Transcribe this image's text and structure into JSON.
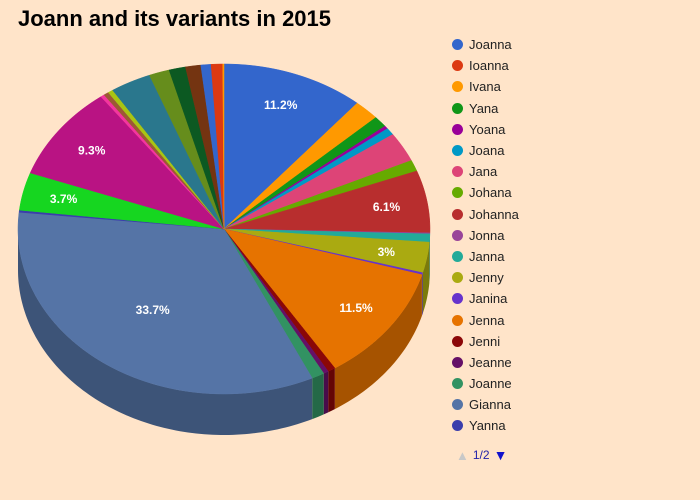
{
  "chart_data": {
    "type": "pie",
    "title": "Joann and its variants in 2015",
    "slices": [
      {
        "name": "Joanna",
        "value": 11.2,
        "color": "#3366cc",
        "label": "11.2%"
      },
      {
        "name": "Ioanna",
        "value": 0.0,
        "color": "#dc3912",
        "label": ""
      },
      {
        "name": "Ivana",
        "value": 2.0,
        "color": "#ff9900",
        "label": ""
      },
      {
        "name": "Yana",
        "value": 1.1,
        "color": "#109618",
        "label": ""
      },
      {
        "name": "Yoana",
        "value": 0.3,
        "color": "#990099",
        "label": ""
      },
      {
        "name": "Joana",
        "value": 0.7,
        "color": "#0099c6",
        "label": ""
      },
      {
        "name": "Jana",
        "value": 2.9,
        "color": "#dd4477",
        "label": ""
      },
      {
        "name": "Johana",
        "value": 1.1,
        "color": "#66aa00",
        "label": ""
      },
      {
        "name": "Johanna",
        "value": 6.1,
        "color": "#b82e2e",
        "label": "6.1%"
      },
      {
        "name": "Jonna",
        "value": 0.1,
        "color": "#994499",
        "label": ""
      },
      {
        "name": "Janna",
        "value": 0.8,
        "color": "#22aa99",
        "label": ""
      },
      {
        "name": "Jenny",
        "value": 3.0,
        "color": "#aaaa11",
        "label": "3%"
      },
      {
        "name": "Janina",
        "value": 0.2,
        "color": "#6633cc",
        "label": ""
      },
      {
        "name": "Jenna",
        "value": 11.5,
        "color": "#e67300",
        "label": "11.5%"
      },
      {
        "name": "Jenni",
        "value": 0.6,
        "color": "#8b0707",
        "label": ""
      },
      {
        "name": "Jeanne",
        "value": 0.4,
        "color": "#651067",
        "label": ""
      },
      {
        "name": "Joanne",
        "value": 1.0,
        "color": "#329262",
        "label": ""
      },
      {
        "name": "Gianna",
        "value": 33.7,
        "color": "#5574a6",
        "label": "33.7%"
      },
      {
        "name": "Yanna",
        "value": 0.2,
        "color": "#3b3eac",
        "label": ""
      },
      {
        "name": "",
        "value": 3.7,
        "color": "#16d620",
        "label": "3.7%"
      },
      {
        "name": "",
        "value": 9.3,
        "color": "#b91383",
        "label": "9.3%"
      },
      {
        "name": "",
        "value": 0.3,
        "color": "#f4359e",
        "label": ""
      },
      {
        "name": "",
        "value": 0.4,
        "color": "#9c5935",
        "label": ""
      },
      {
        "name": "",
        "value": 0.4,
        "color": "#a9c413",
        "label": ""
      },
      {
        "name": "",
        "value": 3.2,
        "color": "#2a778d",
        "label": ""
      },
      {
        "name": "",
        "value": 1.6,
        "color": "#668d1c",
        "label": ""
      },
      {
        "name": "",
        "value": 1.3,
        "color": "#0c5922",
        "label": ""
      },
      {
        "name": "",
        "value": 1.2,
        "color": "#743411",
        "label": ""
      },
      {
        "name": "",
        "value": 0.8,
        "color": "#3366cc",
        "label": ""
      },
      {
        "name": "",
        "value": 0.9,
        "color": "#dc3912",
        "label": ""
      },
      {
        "name": "",
        "value": 0.1,
        "color": "#ff9900",
        "label": ""
      }
    ],
    "legend_placement": "right",
    "pie_3d": true
  },
  "pager": {
    "text": "1/2"
  }
}
